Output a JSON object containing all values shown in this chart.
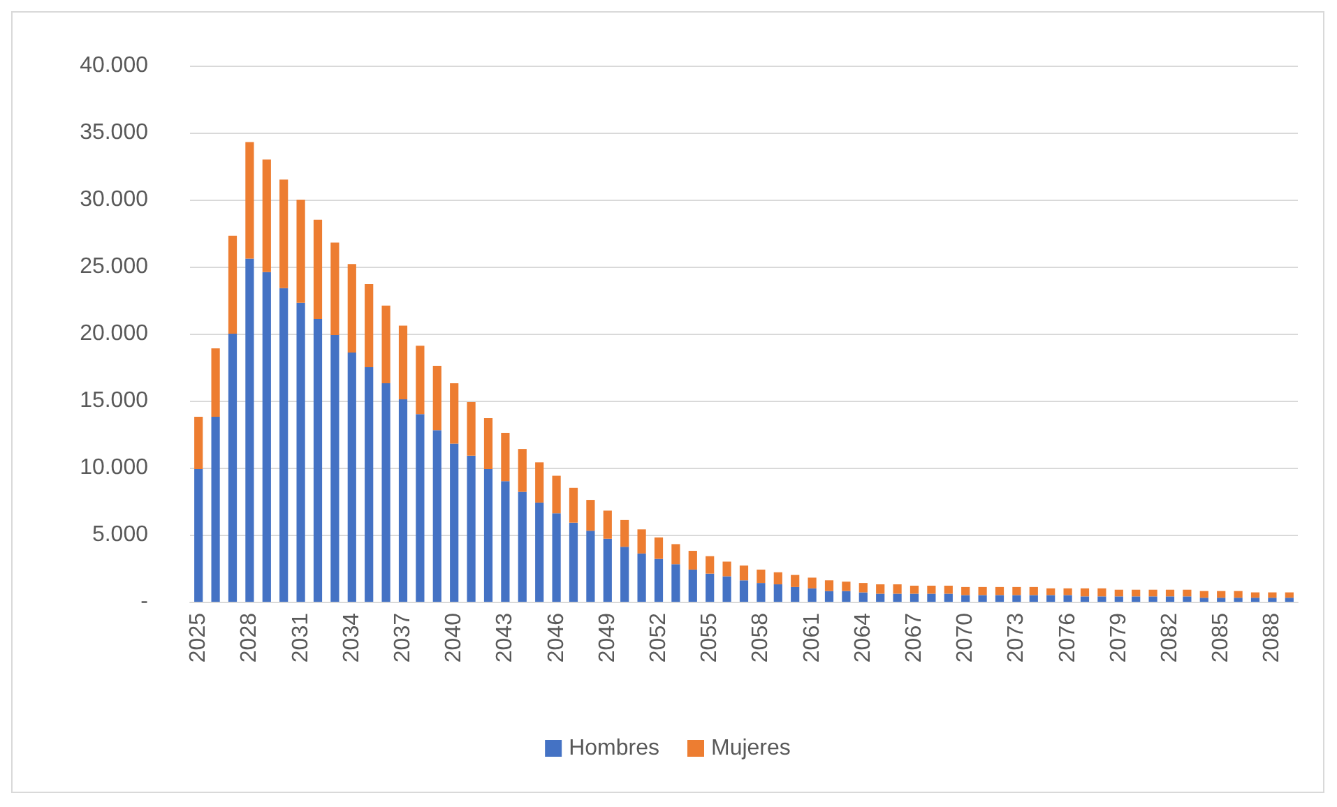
{
  "chart_data": {
    "type": "bar",
    "stacked": true,
    "categories": [
      "2025",
      null,
      null,
      "2028",
      null,
      null,
      "2031",
      null,
      null,
      "2034",
      null,
      null,
      "2037",
      null,
      null,
      "2040",
      null,
      null,
      "2043",
      null,
      null,
      "2046",
      null,
      null,
      "2049",
      null,
      null,
      "2052",
      null,
      null,
      "2055",
      null,
      null,
      "2058",
      null,
      null,
      "2061",
      null,
      null,
      "2064",
      null,
      null,
      "2067",
      null,
      null,
      "2070",
      null,
      null,
      "2073",
      null,
      null,
      "2076",
      null,
      null,
      "2079",
      null,
      null,
      "2082",
      null,
      null,
      "2085",
      null,
      null,
      "2088",
      null
    ],
    "series": [
      {
        "name": "Hombres",
        "color": "#4472c4",
        "values": [
          9900,
          13800,
          20000,
          25600,
          24600,
          23400,
          22300,
          21100,
          19900,
          18600,
          17500,
          16300,
          15100,
          14000,
          12800,
          11800,
          10900,
          9900,
          9000,
          8200,
          7400,
          6600,
          5900,
          5300,
          4700,
          4100,
          3600,
          3200,
          2800,
          2400,
          2100,
          1900,
          1600,
          1400,
          1300,
          1100,
          1000,
          800,
          800,
          700,
          600,
          600,
          600,
          600,
          600,
          500,
          500,
          500,
          500,
          500,
          500,
          500,
          400,
          400,
          400,
          400,
          400,
          400,
          400,
          300,
          300,
          300,
          300,
          300,
          300
        ]
      },
      {
        "name": "Mujeres",
        "color": "#ed7d31",
        "values": [
          3900,
          5100,
          7300,
          8700,
          8400,
          8100,
          7700,
          7400,
          6900,
          6600,
          6200,
          5800,
          5500,
          5100,
          4800,
          4500,
          4000,
          3800,
          3600,
          3200,
          3000,
          2800,
          2600,
          2300,
          2100,
          2000,
          1800,
          1600,
          1500,
          1400,
          1300,
          1100,
          1100,
          1000,
          900,
          900,
          800,
          800,
          700,
          700,
          700,
          700,
          600,
          600,
          600,
          600,
          600,
          600,
          600,
          600,
          500,
          500,
          600,
          600,
          500,
          500,
          500,
          500,
          500,
          500,
          500,
          500,
          400,
          400,
          400
        ]
      }
    ],
    "ylim": [
      0,
      40000
    ],
    "yticks": [
      {
        "value": 0,
        "label": "-"
      },
      {
        "value": 5000,
        "label": "5.000"
      },
      {
        "value": 10000,
        "label": "10.000"
      },
      {
        "value": 15000,
        "label": "15.000"
      },
      {
        "value": 20000,
        "label": "20.000"
      },
      {
        "value": 25000,
        "label": "25.000"
      },
      {
        "value": 30000,
        "label": "30.000"
      },
      {
        "value": 35000,
        "label": "35.000"
      },
      {
        "value": 40000,
        "label": "40.000"
      }
    ],
    "grid": "y",
    "legend": "bottom"
  }
}
